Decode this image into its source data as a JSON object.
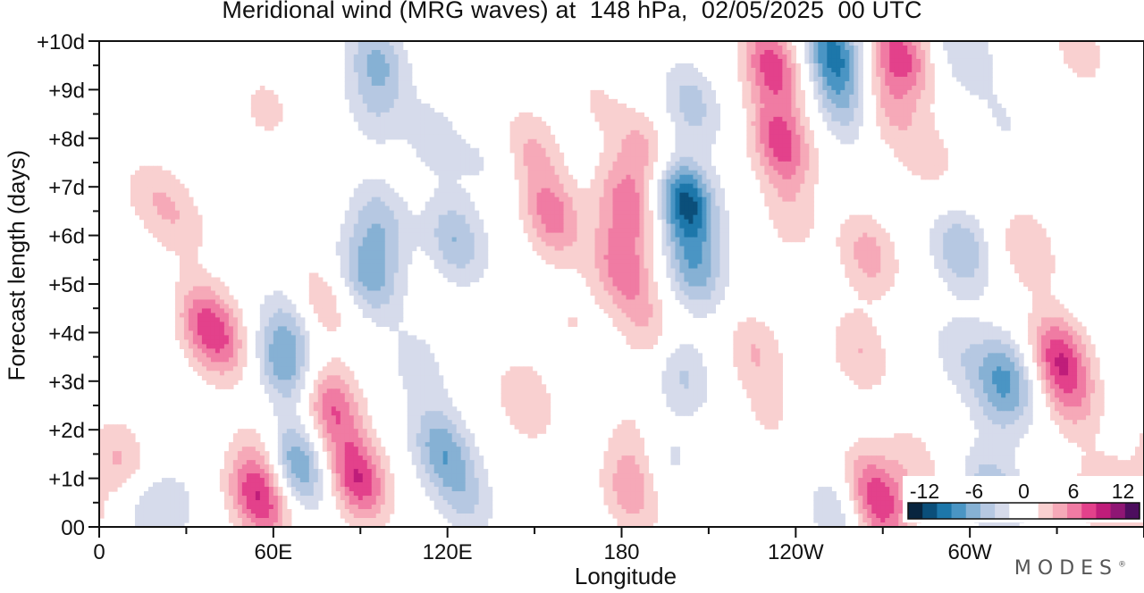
{
  "chart_data": {
    "type": "heatmap",
    "title": "Meridional wind (MRG waves) at  148 hPa,  02/05/2025  00 UTC",
    "xlabel": "Longitude",
    "ylabel": "Forecast length (days)",
    "brand": "MODES",
    "brand_mark": "®",
    "x_ticks": [
      "0",
      "60E",
      "120E",
      "180",
      "120W",
      "60W"
    ],
    "x_tick_values": [
      0,
      60,
      120,
      180,
      240,
      300
    ],
    "xlim": [
      0,
      360
    ],
    "y_ticks": [
      "00",
      "+1d",
      "+2d",
      "+3d",
      "+4d",
      "+5d",
      "+6d",
      "+7d",
      "+8d",
      "+9d",
      "+10d"
    ],
    "y_tick_values": [
      0,
      1,
      2,
      3,
      4,
      5,
      6,
      7,
      8,
      9,
      10
    ],
    "ylim": [
      0,
      10
    ],
    "colorbar": {
      "labels": [
        "-12",
        "-6",
        "0",
        "6",
        "12"
      ],
      "label_values": [
        -12,
        -6,
        0,
        6,
        12
      ],
      "range": [
        -14,
        14
      ],
      "colors": [
        "#08253f",
        "#0b4f7a",
        "#1d77aa",
        "#4a95c4",
        "#86b1d4",
        "#b6c8e2",
        "#d6dbeb",
        "#ffffff",
        "#ffffff",
        "#f9d0d0",
        "#f6a9b8",
        "#f07ba3",
        "#e3418b",
        "#bf1d7a",
        "#8f1674",
        "#4d0e5e"
      ],
      "placement": "lower-right, inside plot"
    },
    "contour_levels": [
      -14,
      -12,
      -10,
      -8,
      -6,
      -4,
      -2,
      0,
      2,
      4,
      6,
      8,
      10,
      12,
      14
    ],
    "features": [
      {
        "lon": 8,
        "day": 1.3,
        "peak": 5
      },
      {
        "lon": 16,
        "day": 0.4,
        "peak": -4
      },
      {
        "lon": 27,
        "day": 0.6,
        "peak": -2
      },
      {
        "lon": 17,
        "day": 6.9,
        "peak": 3
      },
      {
        "lon": 28,
        "day": 6.3,
        "peak": 3
      },
      {
        "lon": 35,
        "day": 4.3,
        "peak": 4
      },
      {
        "lon": 41,
        "day": 3.9,
        "peak": 7
      },
      {
        "lon": 6,
        "day": 8.6,
        "peak": -2
      },
      {
        "lon": 12,
        "day": 4.6,
        "peak": -2
      },
      {
        "lon": 55,
        "day": 0.6,
        "peak": 10
      },
      {
        "lon": 57,
        "day": 1.6,
        "peak": 3
      },
      {
        "lon": 68,
        "day": 1.3,
        "peak": -9
      },
      {
        "lon": 64,
        "day": 3.3,
        "peak": -7
      },
      {
        "lon": 66,
        "day": 4.2,
        "peak": -4
      },
      {
        "lon": 80,
        "day": 2.5,
        "peak": 8
      },
      {
        "lon": 89,
        "day": 1.0,
        "peak": 10
      },
      {
        "lon": 76,
        "day": 4.6,
        "peak": 4
      },
      {
        "lon": 93,
        "day": 5.2,
        "peak": -7
      },
      {
        "lon": 97,
        "day": 6.3,
        "peak": -5
      },
      {
        "lon": 58,
        "day": 8.5,
        "peak": 3
      },
      {
        "lon": 63,
        "day": 7.3,
        "peak": -2
      },
      {
        "lon": 94,
        "day": 8.6,
        "peak": -3
      },
      {
        "lon": 96,
        "day": 9.6,
        "peak": -6
      },
      {
        "lon": 115,
        "day": 8.0,
        "peak": -3
      },
      {
        "lon": 110,
        "day": 3.3,
        "peak": -3
      },
      {
        "lon": 118,
        "day": 1.6,
        "peak": -7
      },
      {
        "lon": 126,
        "day": 0.6,
        "peak": -4
      },
      {
        "lon": 123,
        "day": 5.9,
        "peak": -6
      },
      {
        "lon": 133,
        "day": 7.5,
        "peak": -2
      },
      {
        "lon": 149,
        "day": 7.8,
        "peak": 4
      },
      {
        "lon": 156,
        "day": 6.4,
        "peak": 7
      },
      {
        "lon": 147,
        "day": 2.6,
        "peak": 4
      },
      {
        "lon": 163,
        "day": 4.2,
        "peak": 2
      },
      {
        "lon": 171,
        "day": 8.8,
        "peak": 2
      },
      {
        "lon": 182,
        "day": 6.6,
        "peak": 7
      },
      {
        "lon": 180,
        "day": 5.3,
        "peak": 7
      },
      {
        "lon": 188,
        "day": 7.7,
        "peak": 5
      },
      {
        "lon": 190,
        "day": 4.0,
        "peak": 4
      },
      {
        "lon": 183,
        "day": 0.7,
        "peak": 5
      },
      {
        "lon": 187,
        "day": 1.7,
        "peak": 4
      },
      {
        "lon": 200,
        "day": 3.2,
        "peak": -5
      },
      {
        "lon": 194,
        "day": 1.5,
        "peak": -4
      },
      {
        "lon": 202,
        "day": 6.7,
        "peak": -13
      },
      {
        "lon": 205,
        "day": 5.3,
        "peak": -7
      },
      {
        "lon": 204,
        "day": 8.7,
        "peak": -5
      },
      {
        "lon": 232,
        "day": 9.5,
        "peak": 9
      },
      {
        "lon": 235,
        "day": 7.9,
        "peak": 9
      },
      {
        "lon": 238,
        "day": 6.4,
        "peak": 3
      },
      {
        "lon": 226,
        "day": 3.6,
        "peak": 4
      },
      {
        "lon": 231,
        "day": 2.2,
        "peak": 2
      },
      {
        "lon": 253,
        "day": 9.8,
        "peak": -10
      },
      {
        "lon": 256,
        "day": 8.7,
        "peak": -5
      },
      {
        "lon": 276,
        "day": 9.7,
        "peak": 9
      },
      {
        "lon": 271,
        "day": 8.6,
        "peak": 4
      },
      {
        "lon": 265,
        "day": 5.6,
        "peak": 5
      },
      {
        "lon": 262,
        "day": 3.6,
        "peak": 4
      },
      {
        "lon": 286,
        "day": 7.6,
        "peak": 3
      },
      {
        "lon": 265,
        "day": 1.0,
        "peak": 3
      },
      {
        "lon": 269,
        "day": 0.4,
        "peak": 8
      },
      {
        "lon": 254,
        "day": 0.3,
        "peak": -4
      },
      {
        "lon": 281,
        "day": 1.3,
        "peak": 3
      },
      {
        "lon": 297,
        "day": 5.7,
        "peak": -6
      },
      {
        "lon": 296,
        "day": 3.6,
        "peak": -3
      },
      {
        "lon": 298,
        "day": 9.8,
        "peak": -4
      },
      {
        "lon": 312,
        "day": 8.3,
        "peak": -2
      },
      {
        "lon": 320,
        "day": 5.7,
        "peak": 4
      },
      {
        "lon": 313,
        "day": 3.1,
        "peak": -7
      },
      {
        "lon": 309,
        "day": 2.5,
        "peak": -3
      },
      {
        "lon": 308,
        "day": 0.7,
        "peak": -6
      },
      {
        "lon": 331,
        "day": 3.5,
        "peak": 9
      },
      {
        "lon": 335,
        "day": 2.6,
        "peak": 4
      },
      {
        "lon": 338,
        "day": 9.8,
        "peak": 3
      },
      {
        "lon": 352,
        "day": 0.5,
        "peak": 4
      },
      {
        "lon": 343,
        "day": 0.6,
        "peak": 2
      }
    ]
  }
}
